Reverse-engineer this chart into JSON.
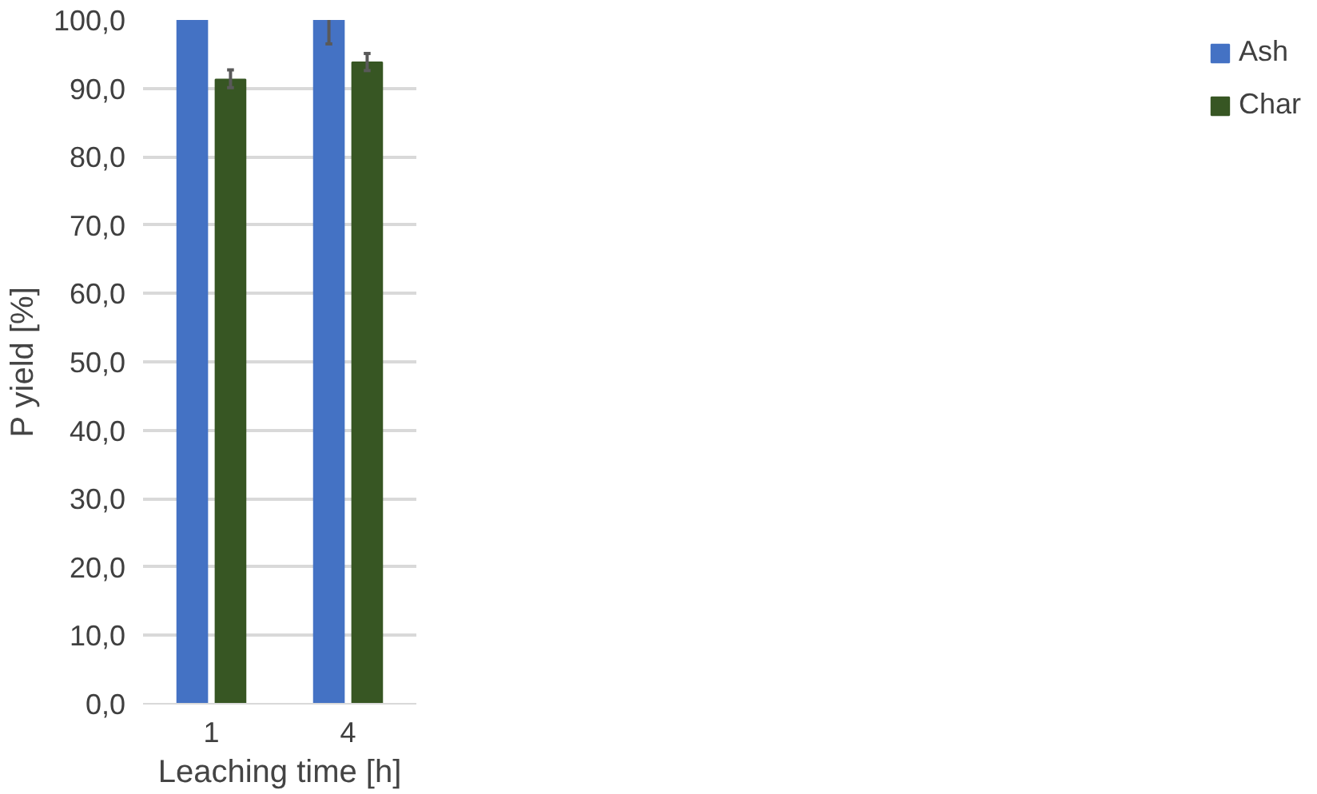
{
  "chart_data": {
    "type": "bar",
    "xlabel": "Leaching time [h]",
    "ylabel": "P yield [%]",
    "categories": [
      "1",
      "4"
    ],
    "series": [
      {
        "name": "Ash",
        "color": "#4472c4",
        "values": [
          100.0,
          100.0
        ],
        "errors": [
          null,
          [
            96.5,
            100.0
          ]
        ]
      },
      {
        "name": "Char",
        "color": "#375623",
        "values": [
          91.3,
          93.8
        ],
        "errors": [
          [
            90.1,
            92.7
          ],
          [
            92.6,
            95.1
          ]
        ]
      }
    ],
    "ylim": [
      0,
      100
    ],
    "yticks": [
      {
        "value": 0,
        "label": "0,0"
      },
      {
        "value": 10,
        "label": "10,0"
      },
      {
        "value": 20,
        "label": "20,0"
      },
      {
        "value": 30,
        "label": "30,0"
      },
      {
        "value": 40,
        "label": "40,0"
      },
      {
        "value": 50,
        "label": "50,0"
      },
      {
        "value": 60,
        "label": "60,0"
      },
      {
        "value": 70,
        "label": "70,0"
      },
      {
        "value": 80,
        "label": "80,0"
      },
      {
        "value": 90,
        "label": "90,0"
      },
      {
        "value": 100,
        "label": "100,0"
      }
    ],
    "grid": "y",
    "legend": "right"
  }
}
